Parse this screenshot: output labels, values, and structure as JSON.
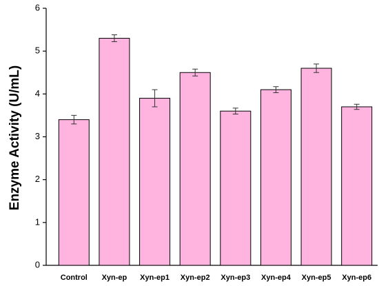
{
  "chart_data": {
    "type": "bar",
    "y_label": "Enzyme Activity (U/mL)",
    "categories": [
      "Control",
      "Xyn-ep",
      "Xyn-ep1",
      "Xyn-ep2",
      "Xyn-ep3",
      "Xyn-ep4",
      "Xyn-ep5",
      "Xyn-ep6"
    ],
    "values": [
      3.4,
      5.3,
      3.9,
      4.5,
      3.6,
      4.1,
      4.6,
      3.7
    ],
    "errors": [
      0.1,
      0.08,
      0.2,
      0.08,
      0.07,
      0.07,
      0.1,
      0.06
    ],
    "color": "#ffb3df",
    "ylim": [
      0,
      6
    ],
    "yticks": [
      0,
      1,
      2,
      3,
      4,
      5,
      6
    ],
    "grid": false
  }
}
